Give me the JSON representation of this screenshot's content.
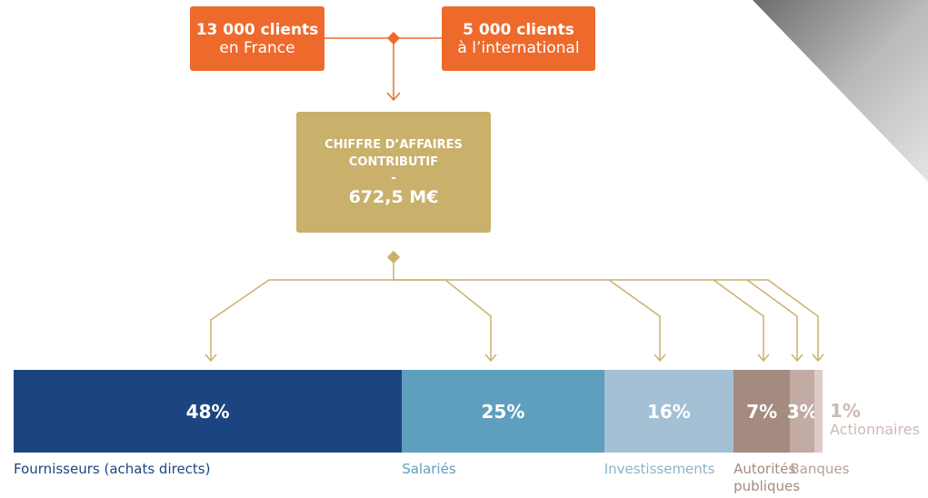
{
  "clients": [
    {
      "count": "13 000 clients",
      "place": "en France"
    },
    {
      "count": "5 000 clients",
      "place": "à l’international"
    }
  ],
  "revenue": {
    "title_line1": "CHIFFRE D’AFFAIRES",
    "title_line2": "CONTRIBUTIF",
    "separator": "-",
    "amount": "672,5 M€"
  },
  "segments": [
    {
      "value": 48,
      "value_label": "48%",
      "name": "Fournisseurs (achats directs)",
      "color": "#1c4480",
      "text_color": "#1c4480"
    },
    {
      "value": 25,
      "value_label": "25%",
      "name": "Salariés",
      "color": "#5f9fbe",
      "text_color": "#5f9fbe"
    },
    {
      "value": 16,
      "value_label": "16%",
      "name": "Investissements",
      "color": "#a3c0d4",
      "text_color": "#8fb2c9"
    },
    {
      "value": 7,
      "value_label": "7%",
      "name": "Autorités publiques",
      "color": "#a58b7f",
      "text_color": "#a58b7f"
    },
    {
      "value": 3,
      "value_label": "3%",
      "name": "Banques",
      "color": "#c1aba3",
      "text_color": "#b59e95"
    },
    {
      "value": 1,
      "value_label": "1%",
      "name": "Actionnaires",
      "color": "#dccbc6",
      "text_color": "#cdbab3"
    }
  ]
}
